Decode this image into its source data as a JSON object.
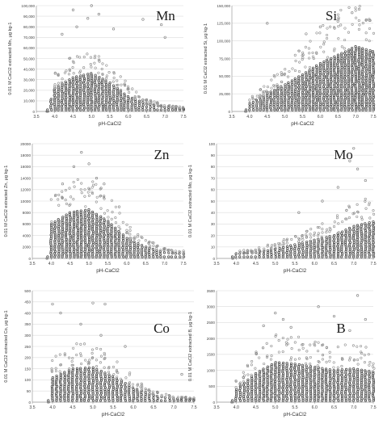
{
  "chart_data": [
    {
      "type": "scatter",
      "element_label": "Mn",
      "xlabel": "pH-CaCl2",
      "ylabel": "0.01 M CaCl2 extracted Mn, μg kg-1",
      "xlim": [
        3.5,
        7.5
      ],
      "ylim": [
        0,
        100000
      ],
      "xticks": [
        "3.5",
        "4.0",
        "4.5",
        "5.0",
        "5.5",
        "6.0",
        "6.5",
        "7.0",
        "7.5"
      ],
      "yticks": [
        "0",
        "10,000",
        "20,000",
        "30,000",
        "40,000",
        "50,000",
        "60,000",
        "70,000",
        "80,000",
        "90,000",
        "100,000"
      ],
      "profile": [
        [
          3.8,
          0
        ],
        [
          4.0,
          22000
        ],
        [
          4.5,
          32000
        ],
        [
          5.0,
          36000
        ],
        [
          5.5,
          27000
        ],
        [
          6.0,
          14000
        ],
        [
          6.5,
          7000
        ],
        [
          7.0,
          4000
        ],
        [
          7.5,
          2500
        ]
      ],
      "outliers": [
        [
          4.2,
          73000
        ],
        [
          4.5,
          96000
        ],
        [
          4.6,
          80000
        ],
        [
          4.9,
          88000
        ],
        [
          5.0,
          100000
        ],
        [
          5.2,
          92000
        ],
        [
          5.6,
          78000
        ],
        [
          6.4,
          87000
        ],
        [
          6.9,
          82000
        ],
        [
          7.0,
          70000
        ]
      ]
    },
    {
      "type": "scatter",
      "element_label": "Si",
      "xlabel": "pH-CaCl2",
      "ylabel": "0.01 M CaCl2 extracted Si, μg kg-1",
      "xlim": [
        3.5,
        7.5
      ],
      "ylim": [
        0,
        150000
      ],
      "xticks": [
        "3.5",
        "4.0",
        "4.5",
        "5.0",
        "5.5",
        "6.0",
        "6.5",
        "7.0",
        "7.5"
      ],
      "yticks": [
        "0",
        "25,000",
        "50,000",
        "75,000",
        "100,000",
        "125,000",
        "150,000"
      ],
      "profile": [
        [
          3.9,
          0
        ],
        [
          4.0,
          10000
        ],
        [
          4.5,
          25000
        ],
        [
          5.0,
          38000
        ],
        [
          5.5,
          52000
        ],
        [
          6.0,
          68000
        ],
        [
          6.5,
          80000
        ],
        [
          7.0,
          92000
        ],
        [
          7.5,
          85000
        ]
      ],
      "outliers": [
        [
          4.5,
          125000
        ],
        [
          5.6,
          110000
        ],
        [
          6.0,
          120000
        ],
        [
          6.5,
          128000
        ],
        [
          6.9,
          140000
        ],
        [
          7.1,
          145000
        ],
        [
          7.3,
          130000
        ]
      ]
    },
    {
      "type": "scatter",
      "element_label": "Zn",
      "xlabel": "pH-CaCl2",
      "ylabel": "0.01 M CaCl2 extracted Zn, μg kg-1",
      "xlim": [
        3.5,
        7.5
      ],
      "ylim": [
        0,
        20000
      ],
      "xticks": [
        "3.5",
        "4.0",
        "4.5",
        "5.0",
        "5.5",
        "6.0",
        "6.5",
        "7.0",
        "7.5"
      ],
      "yticks": [
        "0",
        "2000",
        "4000",
        "6000",
        "8000",
        "10000",
        "12000",
        "14000",
        "16000",
        "18000",
        "20000"
      ],
      "profile": [
        [
          3.9,
          0
        ],
        [
          4.0,
          6000
        ],
        [
          4.5,
          8000
        ],
        [
          5.0,
          8500
        ],
        [
          5.5,
          6500
        ],
        [
          6.0,
          3500
        ],
        [
          6.5,
          2000
        ],
        [
          7.0,
          1000
        ],
        [
          7.5,
          800
        ]
      ],
      "outliers": [
        [
          4.3,
          13000
        ],
        [
          4.6,
          16000
        ],
        [
          4.8,
          18500
        ],
        [
          5.0,
          16500
        ],
        [
          5.2,
          14000
        ],
        [
          5.4,
          13000
        ],
        [
          5.8,
          9000
        ]
      ]
    },
    {
      "type": "scatter",
      "element_label": "Mo",
      "xlabel": "pH-CaCl2",
      "ylabel": "0.01 M CaCl2 extracted Mo, μg kg-1",
      "xlim": [
        3.5,
        7.5
      ],
      "ylim": [
        0,
        100
      ],
      "xticks": [
        "3.5",
        "4.0",
        "4.5",
        "5.0",
        "5.5",
        "6.0",
        "6.5",
        "7.0",
        "7.5"
      ],
      "yticks": [
        "0",
        "10",
        "20",
        "30",
        "40",
        "50",
        "60",
        "70",
        "80",
        "90",
        "100"
      ],
      "profile": [
        [
          3.9,
          0
        ],
        [
          4.0,
          4
        ],
        [
          4.5,
          5
        ],
        [
          5.0,
          8
        ],
        [
          5.5,
          12
        ],
        [
          6.0,
          16
        ],
        [
          6.5,
          20
        ],
        [
          7.0,
          28
        ],
        [
          7.5,
          32
        ]
      ],
      "outliers": [
        [
          5.6,
          40
        ],
        [
          6.2,
          50
        ],
        [
          6.6,
          62
        ],
        [
          6.9,
          85
        ],
        [
          7.0,
          96
        ],
        [
          7.1,
          78
        ],
        [
          7.3,
          68
        ]
      ]
    },
    {
      "type": "scatter",
      "element_label": "Co",
      "xlabel": "pH-CaCl2",
      "ylabel": "0.01 M CaCl2 extracted Co, μg kg-1",
      "xlim": [
        3.5,
        7.5
      ],
      "ylim": [
        0,
        500
      ],
      "xticks": [
        "3.5",
        "4.0",
        "4.5",
        "5.0",
        "5.5",
        "6.0",
        "6.5",
        "7.0",
        "7.5"
      ],
      "yticks": [
        "0",
        "50",
        "100",
        "150",
        "200",
        "250",
        "300",
        "350",
        "400",
        "450",
        "500"
      ],
      "profile": [
        [
          3.9,
          0
        ],
        [
          4.0,
          110
        ],
        [
          4.5,
          150
        ],
        [
          5.0,
          155
        ],
        [
          5.5,
          115
        ],
        [
          6.0,
          65
        ],
        [
          6.5,
          30
        ],
        [
          7.0,
          15
        ],
        [
          7.5,
          12
        ]
      ],
      "outliers": [
        [
          4.0,
          440
        ],
        [
          4.2,
          400
        ],
        [
          4.7,
          350
        ],
        [
          5.0,
          445
        ],
        [
          5.3,
          440
        ],
        [
          5.2,
          300
        ],
        [
          5.8,
          250
        ],
        [
          7.2,
          125
        ]
      ]
    },
    {
      "type": "scatter",
      "element_label": "B",
      "xlabel": "pH-CaCl2",
      "ylabel": "0.01 M CaCl2 extracted B, μg kg-1",
      "xlim": [
        3.5,
        7.5
      ],
      "ylim": [
        0,
        3500
      ],
      "xticks": [
        "3.5",
        "4.0",
        "4.5",
        "5.0",
        "5.5",
        "6.0",
        "6.5",
        "7.0",
        "7.5"
      ],
      "yticks": [
        "0",
        "500",
        "1000",
        "1500",
        "2000",
        "2500",
        "3000",
        "3500"
      ],
      "profile": [
        [
          3.9,
          0
        ],
        [
          4.0,
          400
        ],
        [
          4.5,
          900
        ],
        [
          5.0,
          1250
        ],
        [
          5.5,
          1200
        ],
        [
          6.0,
          1100
        ],
        [
          6.5,
          1000
        ],
        [
          7.0,
          1050
        ],
        [
          7.5,
          950
        ]
      ],
      "outliers": [
        [
          4.7,
          2400
        ],
        [
          5.0,
          2800
        ],
        [
          5.2,
          2600
        ],
        [
          5.4,
          2350
        ],
        [
          6.1,
          3000
        ],
        [
          6.5,
          2700
        ],
        [
          6.9,
          2250
        ],
        [
          7.1,
          3350
        ],
        [
          7.3,
          2600
        ]
      ]
    }
  ]
}
